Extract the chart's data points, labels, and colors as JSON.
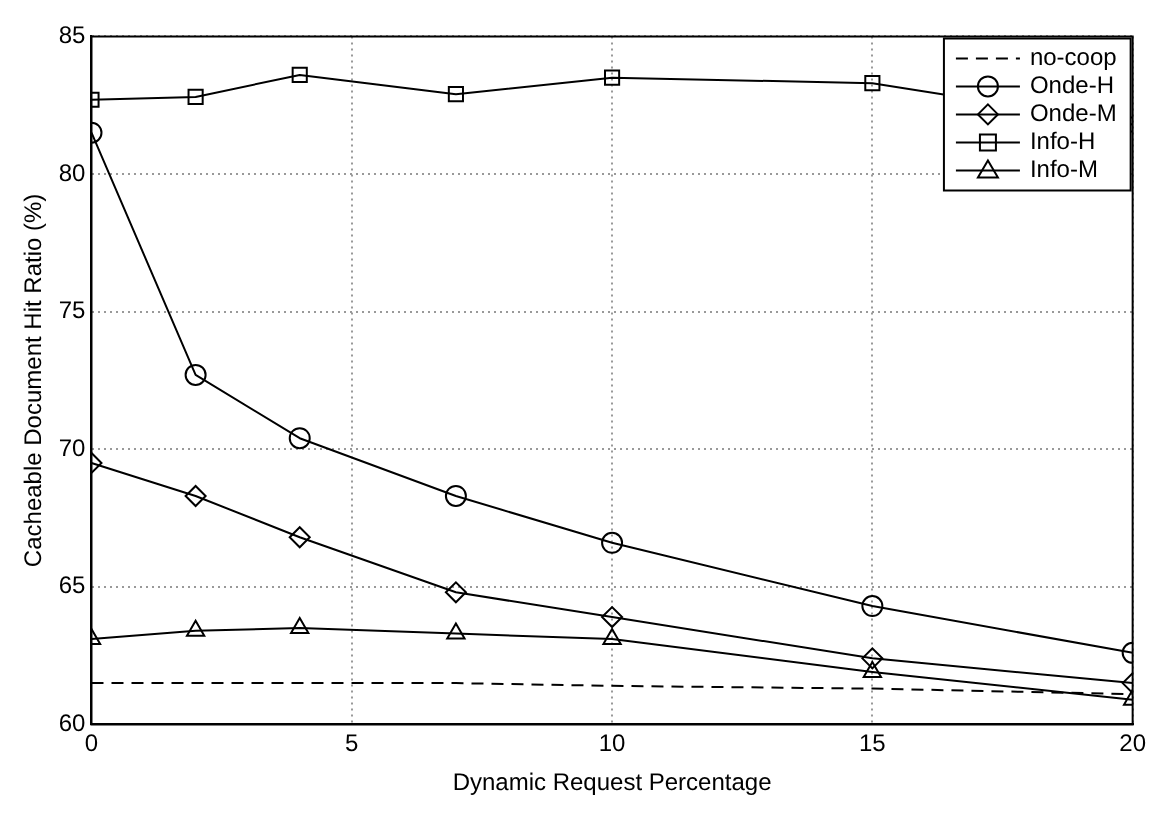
{
  "chart_data": {
    "type": "line",
    "xlabel": "Dynamic Request Percentage",
    "ylabel": "Cacheable Document Hit Ratio (%)",
    "x": [
      0,
      2,
      4,
      7,
      10,
      15,
      20
    ],
    "xlim": [
      0,
      20
    ],
    "xticks": [
      0,
      5,
      10,
      15,
      20
    ],
    "ylim": [
      60,
      85
    ],
    "yticks": [
      60,
      65,
      70,
      75,
      80,
      85
    ],
    "grid": true,
    "legend": "top right",
    "series": [
      {
        "name": "no-coop",
        "color": "#000000",
        "marker": "none",
        "line_style": "dashed",
        "values": [
          61.5,
          61.5,
          61.5,
          61.5,
          61.4,
          61.3,
          61.1
        ]
      },
      {
        "name": "Onde-H",
        "color": "#000000",
        "marker": "circle",
        "line_style": "solid",
        "values": [
          81.5,
          72.7,
          70.4,
          68.3,
          66.6,
          64.3,
          62.6
        ]
      },
      {
        "name": "Onde-M",
        "color": "#000000",
        "marker": "diamond",
        "line_style": "solid",
        "values": [
          69.5,
          68.3,
          66.8,
          64.8,
          63.9,
          62.4,
          61.5
        ]
      },
      {
        "name": "Info-H",
        "color": "#000000",
        "marker": "square",
        "line_style": "solid",
        "values": [
          82.7,
          82.8,
          83.6,
          82.9,
          83.5,
          83.3,
          81.8
        ]
      },
      {
        "name": "Info-M",
        "color": "#000000",
        "marker": "triangle",
        "line_style": "solid",
        "values": [
          63.1,
          63.4,
          63.5,
          63.3,
          63.1,
          61.9,
          60.9
        ]
      }
    ]
  }
}
